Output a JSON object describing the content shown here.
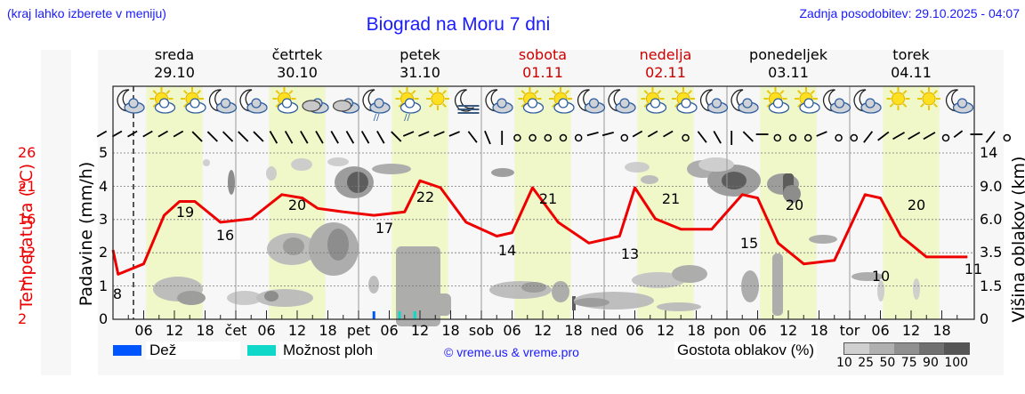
{
  "header": {
    "note": "(kraj lahko izberete v meniju)",
    "title": "Biograd na Moru 7 dni",
    "updated": "Zadnja posodobitev: 29.10.2025 - 04:07"
  },
  "days": [
    {
      "name": "sreda",
      "date": "29.10",
      "weekend": false
    },
    {
      "name": "četrtek",
      "date": "30.10",
      "weekend": false
    },
    {
      "name": "petek",
      "date": "31.10",
      "weekend": false
    },
    {
      "name": "sobota",
      "date": "01.11",
      "weekend": true
    },
    {
      "name": "nedelja",
      "date": "02.11",
      "weekend": true
    },
    {
      "name": "ponedeljek",
      "date": "03.11",
      "weekend": false
    },
    {
      "name": "torek",
      "date": "04.11",
      "weekend": false
    }
  ],
  "axes": {
    "temp_label": "Temperatura (°C)",
    "temp_ticks": [
      "26",
      "21",
      "16",
      "12",
      "7",
      "2"
    ],
    "precip_label": "Padavine (mm/h)",
    "precip_ticks": [
      "5",
      "4",
      "3",
      "2",
      "1",
      "0"
    ],
    "cloud_label": "Višina oblakov (km)",
    "cloud_ticks": [
      "14",
      "9.0",
      "6.0",
      "3.5",
      "1.5",
      "0"
    ]
  },
  "xticks": [
    "06",
    "12",
    "18",
    "čet",
    "06",
    "12",
    "18",
    "pet",
    "06",
    "12",
    "18",
    "sob",
    "06",
    "12",
    "18",
    "ned",
    "06",
    "12",
    "18",
    "pon",
    "06",
    "12",
    "18",
    "tor",
    "06",
    "12",
    "18"
  ],
  "legend": {
    "rain_label": "Dež",
    "rain_color": "#0055ff",
    "storm_label": "Možnost ploh",
    "storm_color": "#10d8c8",
    "copyright": "© vreme.us & vreme.pro",
    "cloud_density_label": "Gostota oblakov (%)",
    "cloud_density_ticks": "10 25 50 75 90 100",
    "cloud_density_colors": [
      "#d0d0d0",
      "#b0b0b0",
      "#909090",
      "#707070",
      "#555555"
    ]
  },
  "colors": {
    "temperature_line": "#ee0000",
    "daylight": "#f0f7c8",
    "title": "#1a1aff"
  },
  "icons": [
    "moon-cloud",
    "sun-cloud",
    "sun-cloud",
    "moon-cloud",
    "moon-cloud",
    "sun-cloud",
    "cloudy",
    "cloudy",
    "moon-cloud-rain",
    "sun-cloud-rain",
    "sun",
    "moon-fog",
    "moon-cloud",
    "sun-cloud",
    "sun-cloud",
    "moon-cloud",
    "moon-cloud",
    "sun-cloud",
    "sun-cloud",
    "moon-cloud",
    "moon-cloud",
    "sun-cloud",
    "sun-cloud",
    "moon-cloud",
    "moon-cloud",
    "sun",
    "sun",
    "moon-cloud"
  ],
  "chart_data": {
    "type": "line",
    "title": "Biograd na Moru 7 dni",
    "xlabel": "",
    "ylabel": "Temperatura (°C)",
    "ylim": [
      2,
      26
    ],
    "series": [
      {
        "name": "Temperatura (°C)",
        "x_hours": [
          0,
          1,
          6,
          10,
          13,
          16,
          21,
          27,
          33,
          37,
          40,
          45,
          51,
          57,
          60,
          64,
          69,
          75,
          78,
          82,
          87,
          93,
          99,
          102,
          106,
          111,
          117,
          123,
          126,
          130,
          135,
          141,
          147,
          150,
          154,
          159,
          165,
          167
        ],
        "values": [
          12,
          8.5,
          10,
          17,
          19,
          19,
          16,
          16.5,
          20,
          19.5,
          18,
          17.5,
          17,
          17.5,
          22,
          21,
          16,
          14,
          14.5,
          21,
          16,
          13,
          14,
          21,
          16.5,
          15,
          15,
          20,
          19.5,
          13,
          10,
          10.5,
          20,
          19.5,
          14,
          11,
          11,
          11
        ]
      }
    ],
    "annotations": [
      {
        "x_hour": 1,
        "label": "8"
      },
      {
        "x_hour": 14,
        "label": "19"
      },
      {
        "x_hour": 23,
        "label": "16"
      },
      {
        "x_hour": 37,
        "label": "20"
      },
      {
        "x_hour": 52,
        "label": "17"
      },
      {
        "x_hour": 61,
        "label": "22"
      },
      {
        "x_hour": 78,
        "label": "14"
      },
      {
        "x_hour": 85,
        "label": "21"
      },
      {
        "x_hour": 102,
        "label": "13"
      },
      {
        "x_hour": 109,
        "label": "21"
      },
      {
        "x_hour": 126,
        "label": "15"
      },
      {
        "x_hour": 133,
        "label": "20"
      },
      {
        "x_hour": 150,
        "label": "10"
      },
      {
        "x_hour": 157,
        "label": "20"
      },
      {
        "x_hour": 167,
        "label": "11"
      }
    ],
    "precipitation": [
      {
        "x_hour": 51,
        "type": "Dež",
        "mm_h": 0.2
      },
      {
        "x_hour": 56,
        "type": "Možnost ploh",
        "mm_h": 0.2
      },
      {
        "x_hour": 59,
        "type": "Možnost ploh",
        "mm_h": 0.2
      }
    ],
    "now_hour": 4.1,
    "grid": true
  }
}
